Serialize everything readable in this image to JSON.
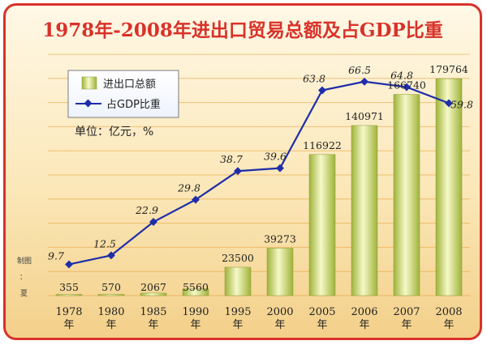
{
  "chart_data": {
    "type": "bar+line",
    "title": "1978年-2008年进出口贸易总额及占GDP比重",
    "unit_note": "单位：亿元，%",
    "credit": [
      "制图",
      "：",
      "夏"
    ],
    "categories": [
      "1978\n年",
      "1980\n年",
      "1985\n年",
      "1990\n年",
      "1995\n年",
      "2000\n年",
      "2005\n年",
      "2006\n年",
      "2007\n年",
      "2008\n年"
    ],
    "series": [
      {
        "name": "进出口总额",
        "type": "bar",
        "values": [
          355,
          570,
          2067,
          5560,
          23500,
          39273,
          116922,
          140971,
          166740,
          179764
        ]
      },
      {
        "name": "占GDP比重",
        "type": "line",
        "values": [
          9.7,
          12.5,
          22.9,
          29.8,
          38.7,
          39.6,
          63.8,
          66.5,
          64.8,
          59.8
        ]
      }
    ],
    "bar_labels": [
      "355",
      "570",
      "2067",
      "5560",
      "23500",
      "39273",
      "116922",
      "140971",
      "166740",
      "179764"
    ],
    "line_labels": [
      "9.7",
      "12.5",
      "22.9",
      "29.8",
      "38.7",
      "39.6",
      "63.8",
      "66.5",
      "64.8",
      "59.8"
    ],
    "ylim_bar": [
      0,
      200000
    ],
    "ylim_line": [
      0,
      75
    ],
    "legend_position": "top-left",
    "grid": true,
    "colors": {
      "frame": "#d8322a",
      "title": "#d8322a",
      "bar_light": "#f6f9c8",
      "bar_dark": "#9fb33a",
      "line": "#1f2ea8",
      "grid": "#e8a23c"
    }
  }
}
